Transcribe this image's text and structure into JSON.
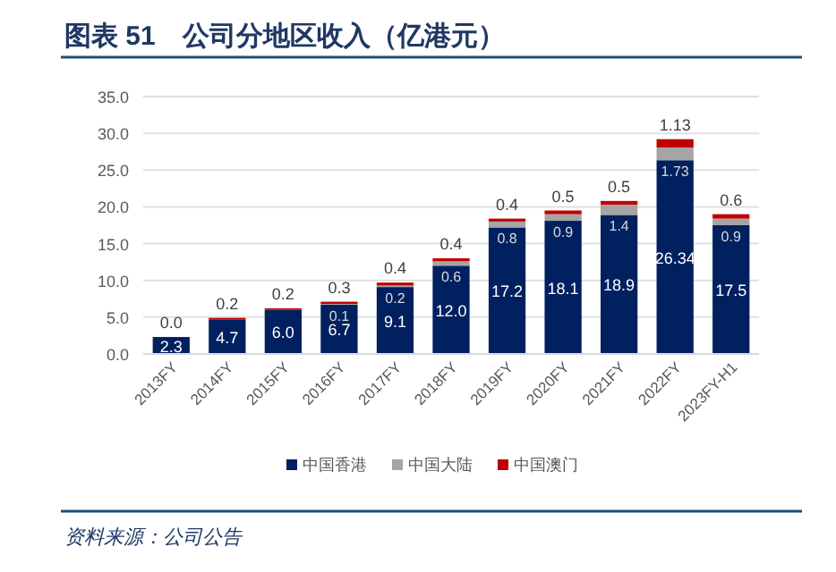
{
  "chart_data": {
    "type": "bar",
    "stacked": true,
    "title": "图表 51　公司分地区收入（亿港元）",
    "categories": [
      "2013FY",
      "2014FY",
      "2015FY",
      "2016FY",
      "2017FY",
      "2018FY",
      "2019FY",
      "2020FY",
      "2021FY",
      "2022FY",
      "2023FY-H1"
    ],
    "series": [
      {
        "name": "中国香港",
        "color": "#002060",
        "values": [
          2.3,
          4.7,
          6.0,
          6.7,
          9.1,
          12.0,
          17.2,
          18.1,
          18.9,
          26.34,
          17.5
        ],
        "value_labels": [
          "2.3",
          "4.7",
          "6.0",
          "6.7",
          "9.1",
          "12.0",
          "17.2",
          "18.1",
          "18.9",
          "26.34",
          "17.5"
        ]
      },
      {
        "name": "中国大陆",
        "color": "#a5a5a5",
        "values": [
          null,
          null,
          null,
          0.1,
          0.2,
          0.6,
          0.8,
          0.9,
          1.4,
          1.73,
          0.9
        ],
        "value_labels": [
          null,
          null,
          null,
          "0.1",
          "0.2",
          "0.6",
          "0.8",
          "0.9",
          "1.4",
          "1.73",
          "0.9"
        ]
      },
      {
        "name": "中国澳门",
        "color": "#c00000",
        "values": [
          0.0,
          0.2,
          0.2,
          0.3,
          0.4,
          0.4,
          0.4,
          0.5,
          0.5,
          1.13,
          0.6
        ],
        "value_labels": [
          "0.0",
          "0.2",
          "0.2",
          "0.3",
          "0.4",
          "0.4",
          "0.4",
          "0.5",
          "0.5",
          "1.13",
          "0.6"
        ]
      }
    ],
    "ylim": [
      0,
      35
    ],
    "yticks": [
      {
        "value": 0,
        "label": "0.0"
      },
      {
        "value": 5,
        "label": "5.0"
      },
      {
        "value": 10,
        "label": "10.0"
      },
      {
        "value": 15,
        "label": "15.0"
      },
      {
        "value": 20,
        "label": "20.0"
      },
      {
        "value": 25,
        "label": "25.0"
      },
      {
        "value": 30,
        "label": "30.0"
      },
      {
        "value": 35,
        "label": "35.0"
      }
    ],
    "grid": "y",
    "legend": "bottom",
    "annotations": [
      "资料来源：公司公告"
    ]
  }
}
